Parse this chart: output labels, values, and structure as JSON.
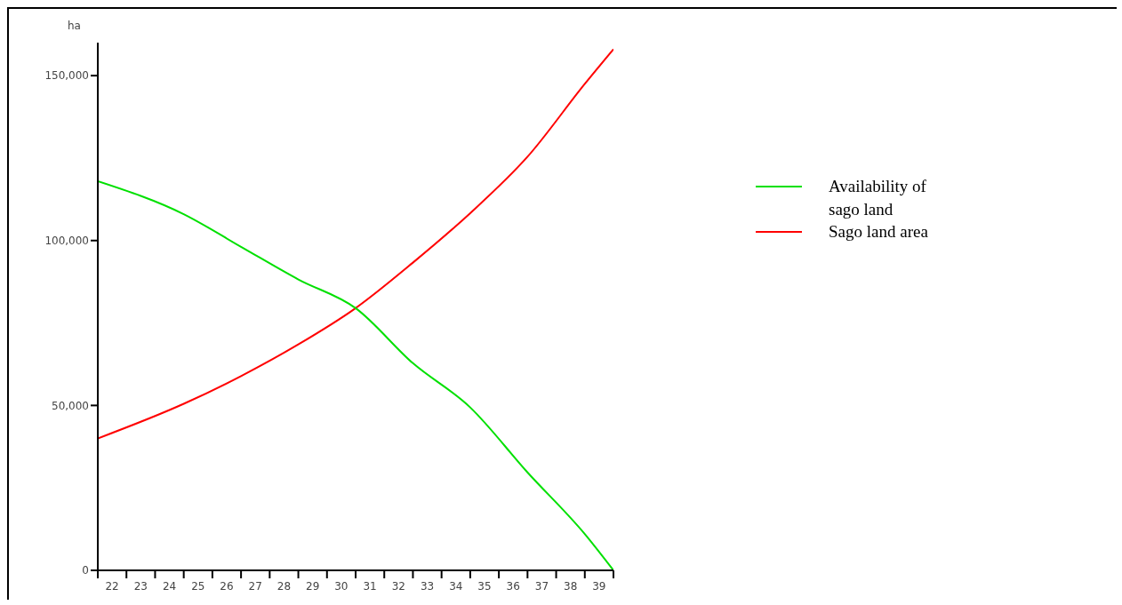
{
  "chart_data": {
    "type": "line",
    "ylabel": "ha",
    "x": [
      22,
      25,
      27,
      29,
      31,
      33,
      35,
      37,
      39,
      40
    ],
    "series": [
      {
        "name": "Sago land area",
        "color": "#ff0000",
        "values": [
          40000,
          50500,
          58900,
          68500,
          79500,
          93300,
          108300,
          125400,
          147500,
          158000
        ]
      },
      {
        "name": "Availability of sago land",
        "color": "#00e000",
        "values": [
          118000,
          108000,
          98100,
          88200,
          79500,
          62800,
          49400,
          29700,
          11000,
          0
        ]
      }
    ],
    "xlim": [
      22,
      40
    ],
    "xticks": [
      {
        "value": 22,
        "label": null
      },
      {
        "value": 23,
        "label": null
      },
      {
        "value": 24,
        "label": null
      },
      {
        "value": 25,
        "label": null
      },
      {
        "value": 26,
        "label": null
      },
      {
        "value": 27,
        "label": null
      },
      {
        "value": 28,
        "label": null
      },
      {
        "value": 29,
        "label": null
      },
      {
        "value": 30,
        "label": null
      },
      {
        "value": 31,
        "label": null
      },
      {
        "value": 32,
        "label": null
      },
      {
        "value": 33,
        "label": null
      },
      {
        "value": 34,
        "label": null
      },
      {
        "value": 35,
        "label": null
      },
      {
        "value": 36,
        "label": null
      },
      {
        "value": 37,
        "label": null
      },
      {
        "value": 38,
        "label": null
      },
      {
        "value": 39,
        "label": null
      },
      {
        "value": 40,
        "label": null
      },
      {
        "value": 22.5,
        "label": "22"
      },
      {
        "value": 23.5,
        "label": "23"
      },
      {
        "value": 24.5,
        "label": "24"
      },
      {
        "value": 25.5,
        "label": "25"
      },
      {
        "value": 26.5,
        "label": "26"
      },
      {
        "value": 27.5,
        "label": "27"
      },
      {
        "value": 28.5,
        "label": "28"
      },
      {
        "value": 29.5,
        "label": "29"
      },
      {
        "value": 30.5,
        "label": "30"
      },
      {
        "value": 31.5,
        "label": "31"
      },
      {
        "value": 32.5,
        "label": "32"
      },
      {
        "value": 33.5,
        "label": "33"
      },
      {
        "value": 34.5,
        "label": "34"
      },
      {
        "value": 35.5,
        "label": "35"
      },
      {
        "value": 36.5,
        "label": "36"
      },
      {
        "value": 37.5,
        "label": "37"
      },
      {
        "value": 38.5,
        "label": "38"
      },
      {
        "value": 39.5,
        "label": "39"
      }
    ],
    "ylim": [
      0,
      160000
    ],
    "yticks": [
      {
        "value": 0,
        "label": "0"
      },
      {
        "value": 50000,
        "label": "50,000"
      },
      {
        "value": 100000,
        "label": "100,000"
      },
      {
        "value": 150000,
        "label": "150,000"
      }
    ],
    "grid": false,
    "legend": "right",
    "marker": "none",
    "line_style": "solid"
  }
}
